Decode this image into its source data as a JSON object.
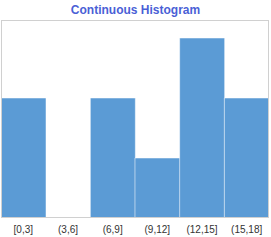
{
  "chart_data": {
    "type": "histogram",
    "title": "Continuous Histogram",
    "categories": [
      "[0,3]",
      "(3,6]",
      "(6,9]",
      "(9,12]",
      "(12,15]",
      "(15,18]"
    ],
    "values": [
      2,
      0,
      2,
      1,
      3,
      2
    ],
    "color": "#5b9bd5",
    "ylim": [
      0,
      3.3
    ],
    "tick_labels": "x"
  }
}
